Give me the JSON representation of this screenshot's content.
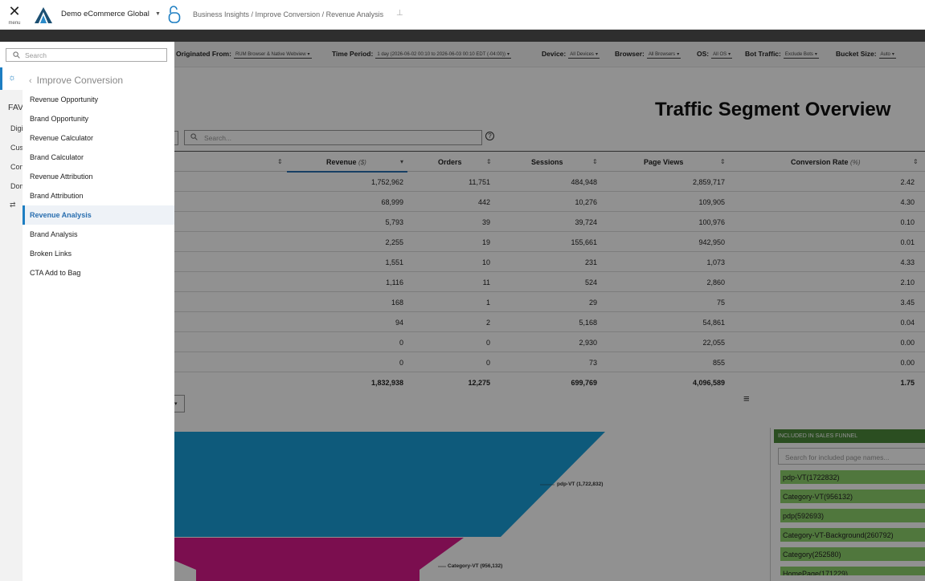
{
  "header": {
    "menu_label": "menu",
    "app_name": "Demo eCommerce Global",
    "breadcrumb": "Business Insights / Improve Conversion / Revenue Analysis"
  },
  "filters": [
    {
      "label": "Originated From:",
      "value": "RUM Browser & Native Webview"
    },
    {
      "label": "Time Period:",
      "value": "1 day (2026-06-02 00:10 to 2026-06-03 00:10 EDT (-04:00))"
    },
    {
      "label": "Device:",
      "value": "All Devices"
    },
    {
      "label": "Browser:",
      "value": "All Browsers"
    },
    {
      "label": "OS:",
      "value": "All OS"
    },
    {
      "label": "Bot Traffic:",
      "value": "Exclude Bots"
    },
    {
      "label": "Bucket Size:",
      "value": "Auto"
    }
  ],
  "overview": {
    "title": "Traffic Segment Overview",
    "search_placeholder": "Search...",
    "help": "?"
  },
  "table": {
    "columns": [
      {
        "label": "Revenue",
        "unit": "($)"
      },
      {
        "label": "Orders",
        "unit": ""
      },
      {
        "label": "Sessions",
        "unit": ""
      },
      {
        "label": "Page Views",
        "unit": ""
      },
      {
        "label": "Conversion Rate",
        "unit": "(%)"
      }
    ],
    "rows": [
      [
        "1,752,962",
        "11,751",
        "484,948",
        "2,859,717",
        "2.42"
      ],
      [
        "68,999",
        "442",
        "10,276",
        "109,905",
        "4.30"
      ],
      [
        "5,793",
        "39",
        "39,724",
        "100,976",
        "0.10"
      ],
      [
        "2,255",
        "19",
        "155,661",
        "942,950",
        "0.01"
      ],
      [
        "1,551",
        "10",
        "231",
        "1,073",
        "4.33"
      ],
      [
        "1,116",
        "11",
        "524",
        "2,860",
        "2.10"
      ],
      [
        "168",
        "1",
        "29",
        "75",
        "3.45"
      ],
      [
        "94",
        "2",
        "5,168",
        "54,861",
        "0.04"
      ],
      [
        "0",
        "0",
        "2,930",
        "22,055",
        "0.00"
      ],
      [
        "0",
        "0",
        "73",
        "855",
        "0.00"
      ]
    ],
    "total": [
      "1,832,938",
      "12,275",
      "699,769",
      "4,096,589",
      "1.75"
    ]
  },
  "funnel": {
    "labels": [
      "pdp-VT (1,722,832)",
      "Category-VT (956,132)"
    ],
    "colors": {
      "stage1": "#1a9fd9",
      "stage2": "#d91a8c"
    }
  },
  "sales_funnel_panel": {
    "title": "INCLUDED IN SALES FUNNEL",
    "search_placeholder": "Search for included page names...",
    "items": [
      "pdp-VT(1722832)",
      "Category-VT(956132)",
      "pdp(592693)",
      "Category-VT-Background(260792)",
      "Category(252580)",
      "HomePage(171229)"
    ]
  },
  "sidebar": {
    "search_placeholder": "Search",
    "rail": {
      "fav": "FAVORITES",
      "items": [
        "Digital",
        "Customer",
        "Conversion",
        "Domain"
      ]
    },
    "submenu_title": "Improve Conversion",
    "items": [
      "Revenue Opportunity",
      "Brand Opportunity",
      "Revenue Calculator",
      "Brand Calculator",
      "Revenue Attribution",
      "Brand Attribution",
      "Revenue Analysis",
      "Brand Analysis",
      "Broken Links",
      "CTA Add to Bag"
    ],
    "active_item": "Revenue Analysis"
  }
}
